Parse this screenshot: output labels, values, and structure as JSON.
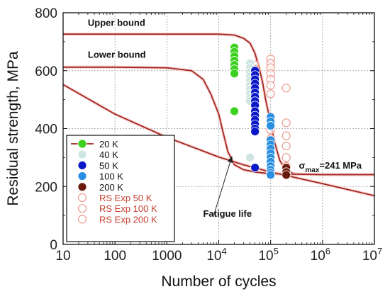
{
  "chart_data": {
    "type": "scatter",
    "xlabel": "Number of cycles",
    "ylabel": "Residual strength, MPa",
    "xscale": "log",
    "xlim": [
      10,
      10000000
    ],
    "ylim": [
      0,
      800
    ],
    "grid": true,
    "legend_position": "bottom-left",
    "x_ticks": [
      {
        "value": 10,
        "label": "10"
      },
      {
        "value": 100,
        "label": "100"
      },
      {
        "value": 1000,
        "label": "1000"
      },
      {
        "value": 10000,
        "base": "10",
        "exp": "4"
      },
      {
        "value": 100000,
        "base": "10",
        "exp": "5"
      },
      {
        "value": 1000000,
        "base": "10",
        "exp": "6"
      },
      {
        "value": 10000000,
        "base": "10",
        "exp": "7"
      }
    ],
    "y_ticks": [
      {
        "value": 0,
        "label": "0"
      },
      {
        "value": 200,
        "label": "200"
      },
      {
        "value": 400,
        "label": "400"
      },
      {
        "value": 600,
        "label": "600"
      },
      {
        "value": 800,
        "label": "800"
      }
    ],
    "lines": [
      {
        "label": "Upper bound",
        "color": "#a3271f",
        "points": [
          [
            10,
            726
          ],
          [
            10000,
            726
          ],
          [
            20000,
            723
          ],
          [
            30000,
            712
          ],
          [
            40000,
            695
          ],
          [
            50000,
            660
          ],
          [
            60000,
            610
          ],
          [
            70000,
            560
          ],
          [
            80000,
            500
          ],
          [
            100000,
            420
          ],
          [
            120000,
            350
          ],
          [
            150000,
            290
          ],
          [
            200000,
            255
          ],
          [
            300000,
            243
          ],
          [
            1000000,
            241
          ],
          [
            10000000,
            241
          ]
        ]
      },
      {
        "label": "Lower bound",
        "color": "#a3271f",
        "points": [
          [
            10,
            612
          ],
          [
            100,
            612
          ],
          [
            1000,
            610
          ],
          [
            3000,
            600
          ],
          [
            5000,
            570
          ],
          [
            7000,
            520
          ],
          [
            10000,
            450
          ],
          [
            12000,
            390
          ],
          [
            15000,
            320
          ],
          [
            20000,
            275
          ],
          [
            30000,
            258
          ],
          [
            50000,
            250
          ],
          [
            100000,
            244
          ],
          [
            1000000,
            241
          ],
          [
            10000000,
            241
          ]
        ]
      },
      {
        "label": "Fatigue life",
        "color": "#a3271f",
        "points": [
          [
            10,
            552
          ],
          [
            100,
            450
          ],
          [
            1000,
            370
          ],
          [
            10000,
            302
          ],
          [
            30000,
            275
          ],
          [
            100000,
            250
          ],
          [
            1000000,
            210
          ],
          [
            10000000,
            168
          ]
        ]
      }
    ],
    "series": [
      {
        "name": "20 K",
        "marker": "filled",
        "color": "#3cd11f",
        "x": 20000,
        "y": [
          680,
          665,
          650,
          635,
          620,
          605,
          590,
          460
        ]
      },
      {
        "name": "40 K",
        "marker": "filled",
        "color": "#cfe5e3",
        "x": 40000,
        "y": [
          625,
          610,
          595,
          580,
          565,
          550,
          535,
          520,
          505,
          495,
          300
        ]
      },
      {
        "name": "50 K",
        "marker": "filled",
        "color": "#0a18c8",
        "x": 50000,
        "y": [
          600,
          585,
          570,
          555,
          540,
          525,
          510,
          495,
          480,
          460,
          445,
          430,
          415,
          400,
          390,
          265
        ]
      },
      {
        "name": "100 K",
        "marker": "filled",
        "color": "#2a8fe0",
        "x": 100000,
        "y": [
          440,
          425,
          410,
          360,
          345,
          330,
          315,
          300,
          285,
          270,
          258,
          248,
          240
        ]
      },
      {
        "name": "200 K",
        "marker": "filled",
        "color": "#6a1a0c",
        "x": 200000,
        "y": [
          265,
          250,
          240
        ]
      },
      {
        "name": "RS Exp 50 K",
        "marker": "hollow",
        "color": "#ee9a90",
        "x": 50000,
        "y": [
          620,
          605,
          590,
          575,
          560,
          545
        ]
      },
      {
        "name": "RS Exp 100 K",
        "marker": "hollow",
        "color": "#ee9a90",
        "x": 100000,
        "y": [
          640,
          625,
          610,
          590,
          570,
          550,
          520,
          430,
          395,
          365,
          335,
          300,
          270,
          250
        ]
      },
      {
        "name": "RS Exp 200 K",
        "marker": "hollow",
        "color": "#ee9a90",
        "x": 200000,
        "y": [
          540,
          420,
          375,
          340,
          300,
          270,
          255
        ]
      }
    ],
    "annotations": [
      {
        "text": "Upper bound",
        "x": 30,
        "y": 755
      },
      {
        "text": "Lower bound",
        "x": 30,
        "y": 645
      },
      {
        "text": "Fatigue life",
        "x": 5000,
        "y": 95
      },
      {
        "text_main": "σ",
        "text_sub": "max",
        "text_rest": "=241 MPa",
        "x": 350000,
        "y": 262
      }
    ],
    "arrow": {
      "from": [
        8000,
        100
      ],
      "to": [
        18000,
        305
      ]
    }
  }
}
